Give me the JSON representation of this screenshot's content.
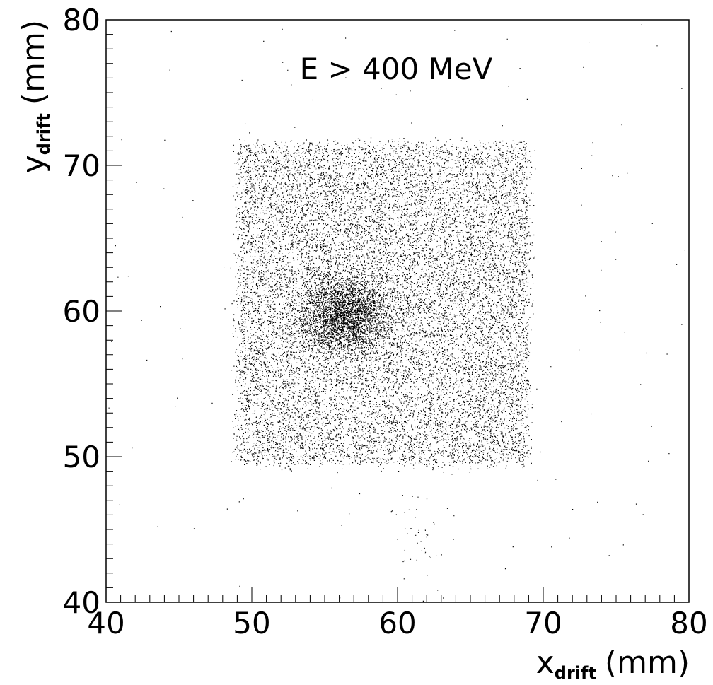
{
  "chart_data": {
    "type": "scatter",
    "title": "",
    "annotation": "E > 400 MeV",
    "xlabel": {
      "main": "x",
      "sub": "drift",
      "unit": "(mm)"
    },
    "ylabel": {
      "main": "y",
      "sub": "drift",
      "unit": "(mm)"
    },
    "xlim": [
      40,
      80
    ],
    "ylim": [
      40,
      80
    ],
    "xticks": [
      40,
      50,
      60,
      70,
      80
    ],
    "yticks": [
      40,
      50,
      60,
      70,
      80
    ],
    "grid": false,
    "marker_color": "#000000",
    "distribution": {
      "uniform_region": {
        "x": [
          49,
          69
        ],
        "y": [
          49.5,
          71.5
        ],
        "count": 16000
      },
      "core_cluster": {
        "center": [
          56.3,
          59.8
        ],
        "sigma": [
          1.5,
          1.3
        ],
        "count": 3000
      },
      "halo": {
        "x": [
          40,
          80
        ],
        "y": [
          40,
          80
        ],
        "count": 160
      },
      "tail": {
        "center": [
          61.5,
          44.5
        ],
        "sigma": [
          0.8,
          1.5
        ],
        "count": 40
      }
    }
  }
}
